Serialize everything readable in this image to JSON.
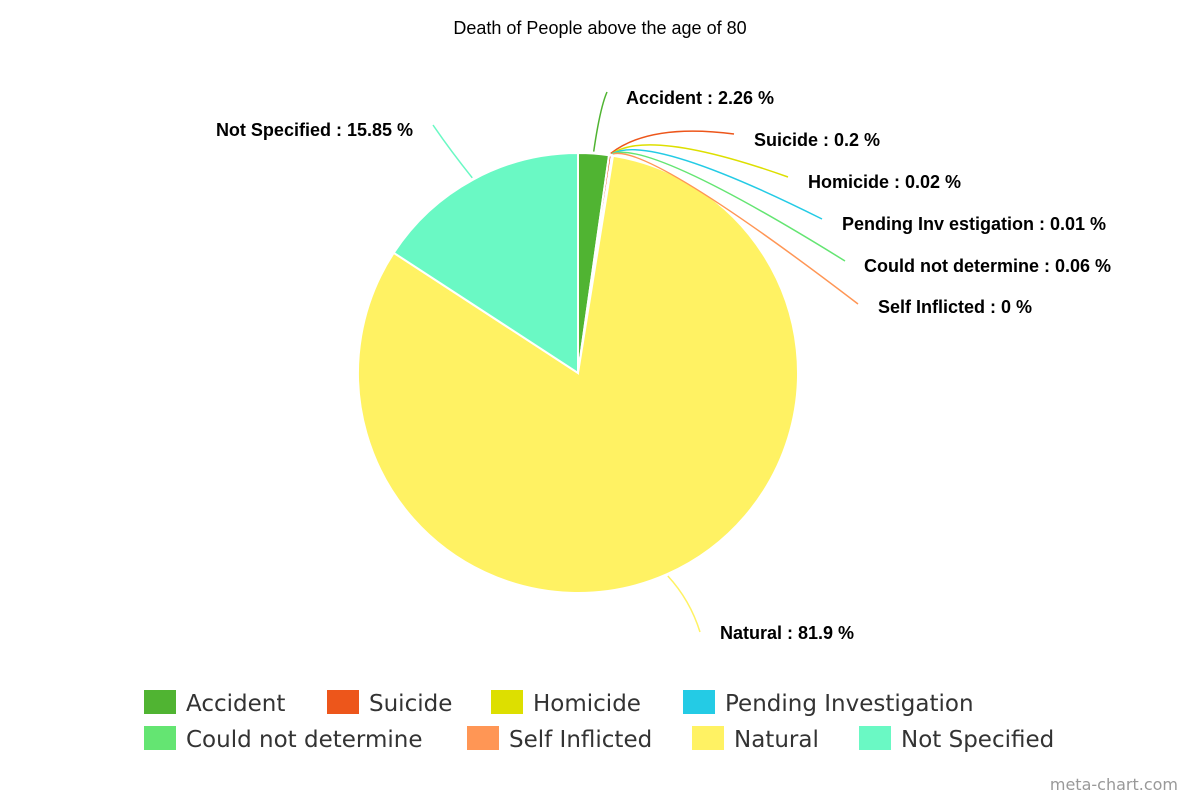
{
  "chart_data": {
    "type": "pie",
    "title": "Death of People above the age of 80",
    "slices": [
      {
        "name": "Accident",
        "value": 2.26,
        "color": "#50b432",
        "label": "Accident : 2.26 %"
      },
      {
        "name": "Suicide",
        "value": 0.2,
        "color": "#ed561b",
        "label": "Suicide : 0.2 %"
      },
      {
        "name": "Homicide",
        "value": 0.02,
        "color": "#dddf00",
        "label": "Homicide : 0.02 %"
      },
      {
        "name": "Pending Investigation",
        "value": 0.01,
        "color": "#24cbe5",
        "label": "Pending Inv estigation : 0.01 %"
      },
      {
        "name": "Could not determine",
        "value": 0.06,
        "color": "#64e572",
        "label": "Could not determine : 0.06 %"
      },
      {
        "name": "Self Inflicted",
        "value": 0,
        "color": "#ff9655",
        "label": "Self Inflicted : 0 %"
      },
      {
        "name": "Natural",
        "value": 81.9,
        "color": "#fff263",
        "label": "Natural : 81.9 %"
      },
      {
        "name": "Not Specified",
        "value": 15.85,
        "color": "#6af9c4",
        "label": "Not Specified : 15.85 %"
      }
    ],
    "legend": {
      "position": "bottom"
    }
  },
  "credit": "meta-chart.com"
}
